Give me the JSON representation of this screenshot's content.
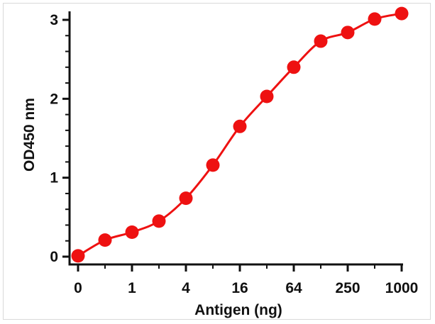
{
  "chart_data": {
    "type": "scatter",
    "xlabel": "Antigen (ng)",
    "ylabel": "OD450 nm",
    "x_tick_labels": [
      "0",
      "1",
      "4",
      "16",
      "64",
      "250",
      "1000"
    ],
    "y_tick_labels": [
      "0",
      "1",
      "2",
      "3"
    ],
    "ylim": [
      0,
      3
    ],
    "x_scale": "log2-like (dilution series)",
    "series": [
      {
        "points_x": [
          "0",
          "0.5",
          "1",
          "2",
          "4",
          "8",
          "16",
          "32",
          "64",
          "128",
          "250",
          "500",
          "1000"
        ],
        "values": [
          0.01,
          0.21,
          0.31,
          0.45,
          0.74,
          1.16,
          1.65,
          2.03,
          2.4,
          2.73,
          2.84,
          3.01,
          3.08
        ],
        "color": "#ee1111",
        "fit_line": "sigmoidal"
      }
    ],
    "grid": false,
    "legend": "none"
  }
}
